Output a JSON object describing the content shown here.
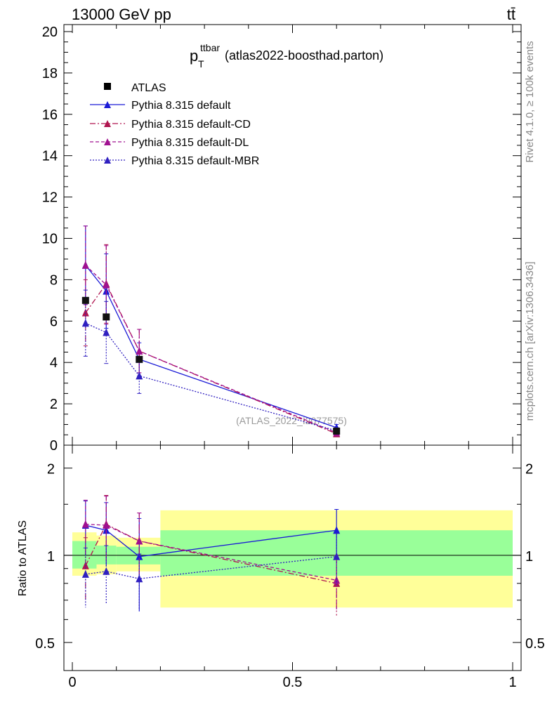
{
  "header": {
    "energy_label": "13000 GeV pp",
    "process_label": "tt̄"
  },
  "side_labels": {
    "rivet": "Rivet 4.1.0, ≥ 100k events",
    "mcplots": "mcplots.cern.ch [arXiv:1306.3436]"
  },
  "chart_data": {
    "type": "line",
    "title_main": "p",
    "title_sup": "ttbar",
    "title_sub": "T",
    "title_rest": "(atlas2022-boosthad.parton)",
    "watermark": "(ATLAS_2022_I2077575)",
    "ratio_ylabel": "Ratio to ATLAS",
    "xlim": [
      0,
      1
    ],
    "main_ylim": [
      0,
      20
    ],
    "ratio_ylim": [
      0.4,
      2.4
    ],
    "x_ticks": [
      "0",
      "0.5",
      "1"
    ],
    "main_y_ticks": [
      "0",
      "2",
      "4",
      "6",
      "8",
      "10",
      "12",
      "14",
      "16",
      "18",
      "20"
    ],
    "ratio_y_ticks": [
      "0.5",
      "1",
      "2"
    ],
    "x": [
      0.03,
      0.077,
      0.152,
      0.6
    ],
    "data": {
      "name": "ATLAS",
      "values": [
        7.0,
        6.2,
        4.15,
        0.68
      ],
      "bin_edges": [
        0,
        0.055,
        0.1,
        0.2,
        1.0
      ],
      "ratio_band_inner": [
        [
          0.9,
          1.12
        ],
        [
          0.93,
          1.08
        ],
        [
          0.93,
          1.07
        ],
        [
          0.85,
          1.22
        ]
      ],
      "ratio_band_outer": [
        [
          0.85,
          1.2
        ],
        [
          0.86,
          1.17
        ],
        [
          0.88,
          1.15
        ],
        [
          0.66,
          1.43
        ]
      ]
    },
    "series": [
      {
        "name": "Pythia 8.315 default",
        "color": "#1a1ad6",
        "dash": "",
        "values": [
          8.7,
          7.45,
          4.15,
          0.85
        ],
        "errors": [
          1.9,
          1.8,
          0.8,
          0.15
        ],
        "ratio": [
          1.27,
          1.22,
          0.99,
          1.22
        ],
        "ratio_errors": [
          0.27,
          0.3,
          0.35,
          0.22
        ]
      },
      {
        "name": "Pythia 8.315 default-CD",
        "color": "#b0154f",
        "dash": "8,3,2,3",
        "values": [
          6.4,
          7.8,
          4.55,
          0.55
        ],
        "errors": [
          1.6,
          1.9,
          1.05,
          0.12
        ],
        "ratio": [
          0.92,
          1.28,
          1.12,
          0.8
        ],
        "ratio_errors": [
          0.23,
          0.33,
          0.28,
          0.18
        ]
      },
      {
        "name": "Pythia 8.315 default-DL",
        "color": "#a01090",
        "dash": "5,3",
        "values": [
          8.7,
          7.75,
          4.55,
          0.6
        ],
        "errors": [
          1.9,
          1.9,
          1.05,
          0.12
        ],
        "ratio": [
          1.28,
          1.27,
          1.12,
          0.82
        ],
        "ratio_errors": [
          0.27,
          0.33,
          0.28,
          0.18
        ]
      },
      {
        "name": "Pythia 8.315 default-MBR",
        "color": "#3020c0",
        "dash": "2,2",
        "values": [
          5.9,
          5.45,
          3.35,
          0.7
        ],
        "errors": [
          1.6,
          1.5,
          0.85,
          0.15
        ],
        "ratio": [
          0.86,
          0.88,
          0.83,
          0.99
        ],
        "ratio_errors": [
          0.2,
          0.2,
          0.18,
          0.2
        ]
      }
    ]
  }
}
